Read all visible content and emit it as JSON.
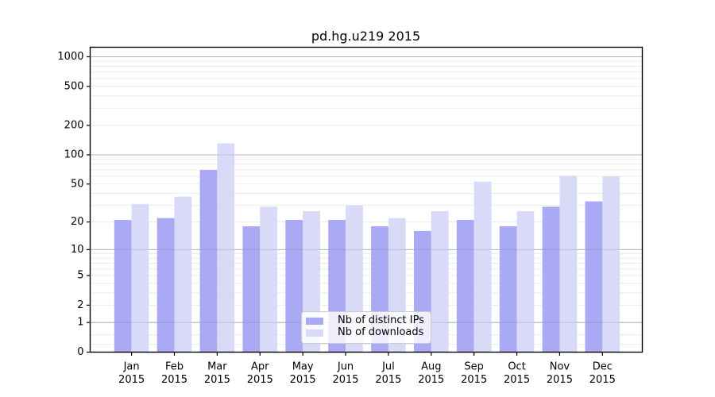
{
  "figure": {
    "background": "#ffffff"
  },
  "chart_data": {
    "type": "bar",
    "title": "pd.hg.u219 2015",
    "categories": [
      "Jan",
      "Feb",
      "Mar",
      "Apr",
      "May",
      "Jun",
      "Jul",
      "Aug",
      "Sep",
      "Oct",
      "Nov",
      "Dec"
    ],
    "category_year": "2015",
    "series": [
      {
        "name": "Nb of distinct IPs",
        "color": "#a9a9f4",
        "values": [
          21,
          22,
          70,
          18,
          21,
          21,
          18,
          16,
          21,
          18,
          29,
          33
        ]
      },
      {
        "name": "Nb of downloads",
        "color": "#d9d9f8",
        "values": [
          31,
          37,
          131,
          29,
          26,
          30,
          22,
          26,
          53,
          26,
          61,
          60
        ]
      }
    ],
    "yscale": "log1p",
    "ylim": [
      0,
      1000
    ],
    "yticks": [
      0,
      1,
      2,
      5,
      10,
      20,
      50,
      100,
      200,
      500,
      1000
    ],
    "grid": "both",
    "grid_major_color": "#c9c9c9",
    "grid_minor_color": "#ececec",
    "axis_color": "#000000",
    "legend_position": "lower center"
  }
}
